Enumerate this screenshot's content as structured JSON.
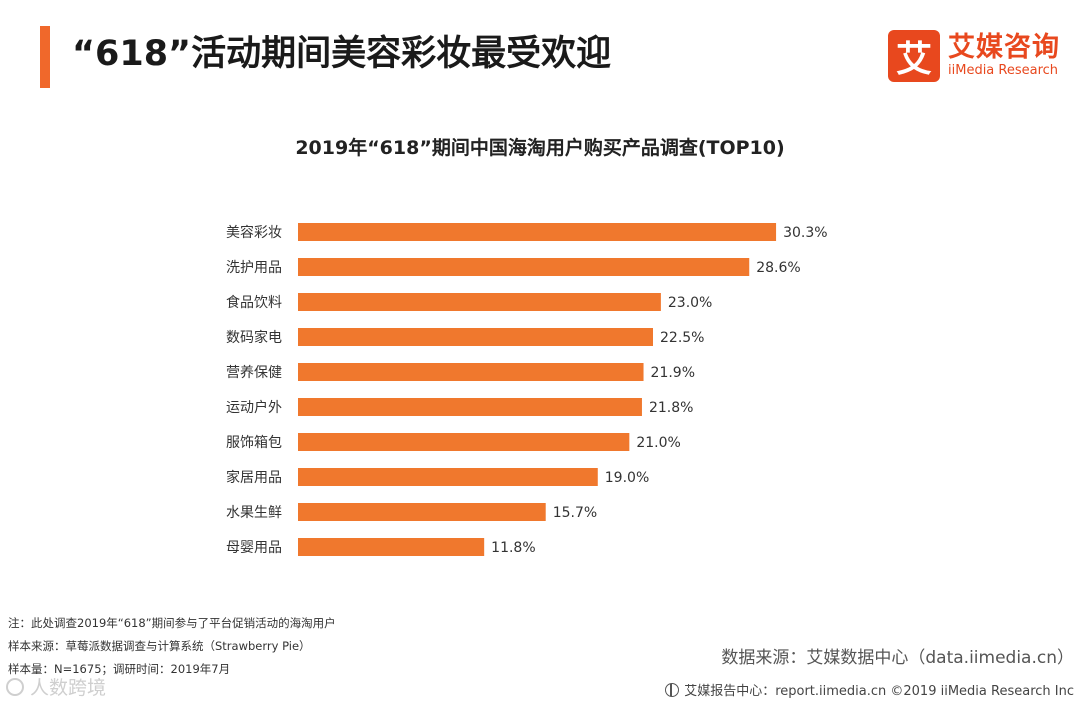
{
  "header": {
    "title": "“618”活动期间美容彩妆最受欢迎",
    "logo_mark": "艾",
    "logo_cn": "艾媒咨询",
    "logo_en": "iiMedia Research",
    "accent_color": "#f0682b"
  },
  "chart_data": {
    "type": "bar",
    "orientation": "horizontal",
    "title": "2019年“618”期间中国海淘用户购买产品调查(TOP10)",
    "xlabel": "",
    "ylabel": "",
    "xlim": [
      0,
      31.5
    ],
    "bar_color": "#f0782d",
    "categories": [
      "美容彩妆",
      "洗护用品",
      "食品饮料",
      "数码家电",
      "营养保健",
      "运动户外",
      "服饰箱包",
      "家居用品",
      "水果生鲜",
      "母婴用品"
    ],
    "values": [
      30.3,
      28.6,
      23.0,
      22.5,
      21.9,
      21.8,
      21.0,
      19.0,
      15.7,
      11.8
    ],
    "value_labels": [
      "30.3%",
      "28.6%",
      "23.0%",
      "22.5%",
      "21.9%",
      "21.8%",
      "21.0%",
      "19.0%",
      "15.7%",
      "11.8%"
    ]
  },
  "notes": {
    "note": "注：此处调查2019年“618”期间参与了平台促销活动的海淘用户",
    "sample_source": "样本来源：草莓派数据调查与计算系统（Strawberry  Pie）",
    "sample_size": "样本量：N=1675；调研时间：2019年7月"
  },
  "source": "数据来源：艾媒数据中心（data.iimedia.cn）",
  "footer": "艾媒报告中心：report.iimedia.cn  ©2019  iiMedia Research  Inc",
  "watermark": "人数跨境"
}
